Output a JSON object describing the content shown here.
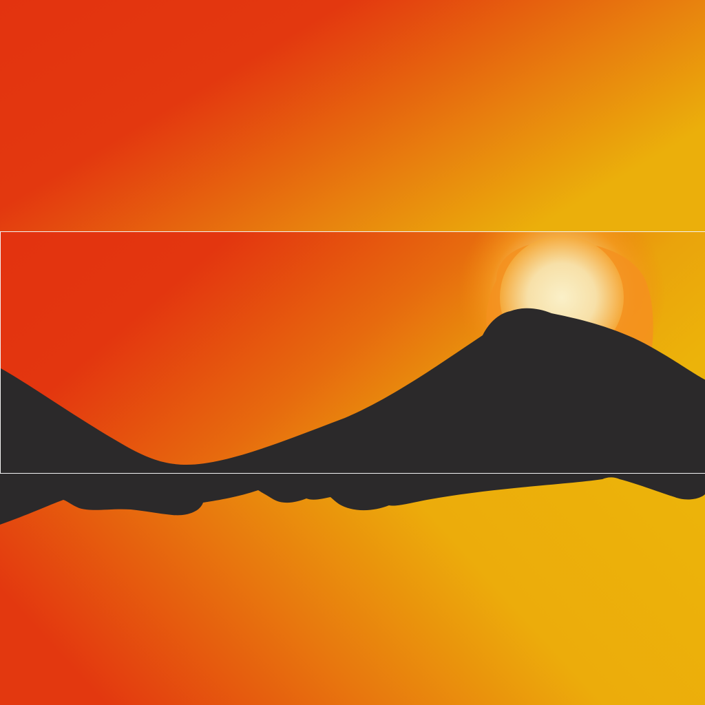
{
  "palette": {
    "sky_red": "#e3330f",
    "sky_orange": "#e8780e",
    "sky_amber": "#ebaa0c",
    "sky_yellow": "#ecb30a",
    "sun_core": "#f9ecc0",
    "sun_halo": "#f7931a",
    "mountain": "#2b292a",
    "divider": "#f4f4f4"
  },
  "scene": {
    "bands": [
      "sky",
      "mountain-sunset",
      "reflection"
    ]
  }
}
